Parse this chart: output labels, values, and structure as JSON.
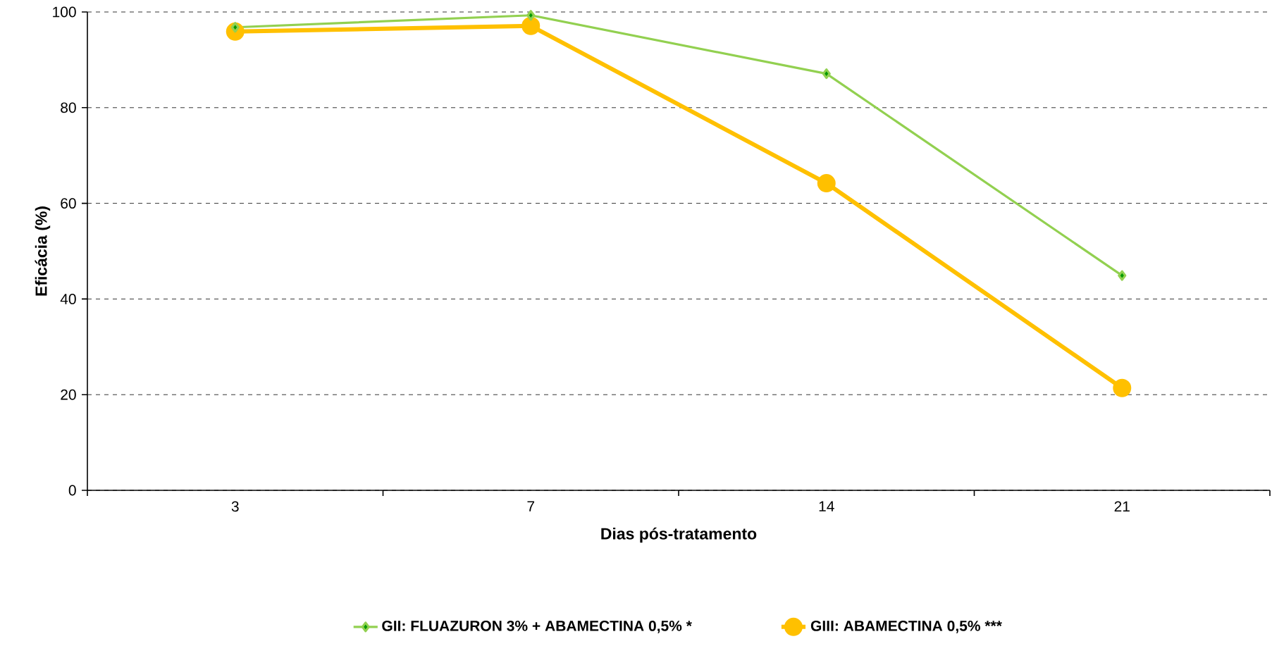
{
  "chart_data": {
    "type": "line",
    "xlabel": "Dias pós-tratamento",
    "ylabel": "Eficácia (%)",
    "categories": [
      "3",
      "7",
      "14",
      "21"
    ],
    "series": [
      {
        "name": "GII: FLUAZURON  3% + ABAMECTINA  0,5% *",
        "color": "#92d050",
        "marker": "diamond",
        "values": [
          96.8,
          99.3,
          87.1,
          44.9
        ]
      },
      {
        "name": "GIII: ABAMECTINA  0,5% ***",
        "color": "#ffc000",
        "marker": "circle",
        "values": [
          95.9,
          97.1,
          64.2,
          21.4
        ]
      }
    ],
    "ylim": [
      0,
      100
    ],
    "yticks": [
      0,
      20,
      40,
      60,
      80,
      100
    ],
    "grid": "y",
    "legend": "bottom"
  }
}
